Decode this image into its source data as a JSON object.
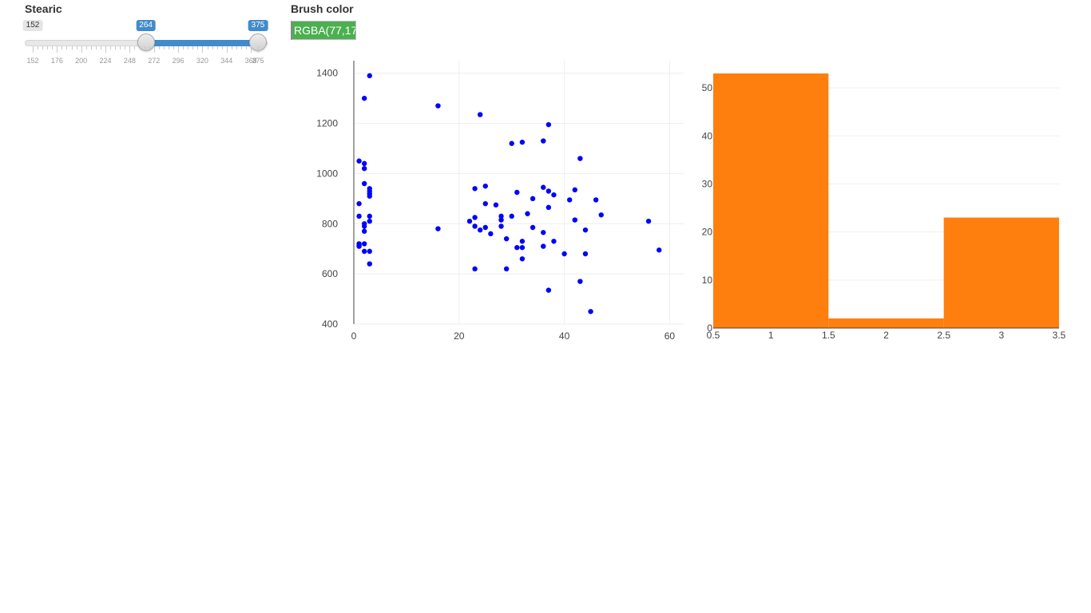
{
  "stearic": {
    "label": "Stearic",
    "min": 152,
    "max": 375,
    "from": 264,
    "to": 375,
    "min_tag": "152",
    "from_tag": "264",
    "to_tag": "375",
    "grid_labels": [
      "152",
      "176",
      "200",
      "224",
      "248",
      "272",
      "296",
      "320",
      "344",
      "368",
      "375"
    ]
  },
  "brush": {
    "label": "Brush color",
    "value": "RGBA(77,17",
    "color": "#4caf50"
  },
  "chart_data": [
    {
      "type": "scatter",
      "title": "",
      "xlabel": "",
      "ylabel": "",
      "xlim": [
        0,
        61
      ],
      "ylim": [
        400,
        1450
      ],
      "xticks": [
        "0",
        "20",
        "40",
        "60"
      ],
      "yticks": [
        "400",
        "600",
        "800",
        "1000",
        "1200",
        "1400"
      ],
      "color": "#0000ff",
      "points": [
        [
          3,
          1390
        ],
        [
          2,
          1300
        ],
        [
          1,
          1050
        ],
        [
          2,
          1040
        ],
        [
          2,
          1020
        ],
        [
          2,
          960
        ],
        [
          3,
          940
        ],
        [
          3,
          930
        ],
        [
          3,
          920
        ],
        [
          3,
          910
        ],
        [
          1,
          880
        ],
        [
          1,
          830
        ],
        [
          3,
          830
        ],
        [
          3,
          810
        ],
        [
          2,
          800
        ],
        [
          2,
          790
        ],
        [
          2,
          770
        ],
        [
          1,
          720
        ],
        [
          1,
          715
        ],
        [
          2,
          720
        ],
        [
          1,
          710
        ],
        [
          2,
          690
        ],
        [
          3,
          690
        ],
        [
          3,
          640
        ],
        [
          16,
          1270
        ],
        [
          16,
          780
        ],
        [
          24,
          1235
        ],
        [
          30,
          1120
        ],
        [
          32,
          1125
        ],
        [
          36,
          1130
        ],
        [
          37,
          1195
        ],
        [
          43,
          1060
        ],
        [
          23,
          940
        ],
        [
          25,
          950
        ],
        [
          31,
          925
        ],
        [
          36,
          945
        ],
        [
          37,
          930
        ],
        [
          38,
          915
        ],
        [
          42,
          935
        ],
        [
          34,
          900
        ],
        [
          41,
          895
        ],
        [
          46,
          895
        ],
        [
          25,
          880
        ],
        [
          27,
          875
        ],
        [
          37,
          865
        ],
        [
          33,
          840
        ],
        [
          47,
          835
        ],
        [
          28,
          830
        ],
        [
          30,
          830
        ],
        [
          23,
          825
        ],
        [
          28,
          815
        ],
        [
          42,
          815
        ],
        [
          22,
          810
        ],
        [
          56,
          810
        ],
        [
          23,
          790
        ],
        [
          25,
          785
        ],
        [
          28,
          790
        ],
        [
          34,
          785
        ],
        [
          24,
          775
        ],
        [
          44,
          775
        ],
        [
          26,
          760
        ],
        [
          36,
          765
        ],
        [
          29,
          740
        ],
        [
          32,
          730
        ],
        [
          38,
          730
        ],
        [
          31,
          705
        ],
        [
          32,
          705
        ],
        [
          36,
          710
        ],
        [
          40,
          680
        ],
        [
          44,
          680
        ],
        [
          58,
          695
        ],
        [
          32,
          660
        ],
        [
          23,
          620
        ],
        [
          29,
          620
        ],
        [
          43,
          570
        ],
        [
          37,
          535
        ],
        [
          45,
          450
        ]
      ]
    },
    {
      "type": "bar",
      "title": "",
      "xlabel": "",
      "ylabel": "",
      "categories": [
        1,
        2,
        3
      ],
      "values": [
        53,
        2,
        23
      ],
      "xlim": [
        0.5,
        3.5
      ],
      "ylim": [
        0,
        55
      ],
      "xticks": [
        "0.5",
        "1",
        "1.5",
        "2",
        "2.5",
        "3",
        "3.5"
      ],
      "yticks": [
        "0",
        "10",
        "20",
        "30",
        "40",
        "50"
      ],
      "color": "#ff7f0e"
    }
  ]
}
